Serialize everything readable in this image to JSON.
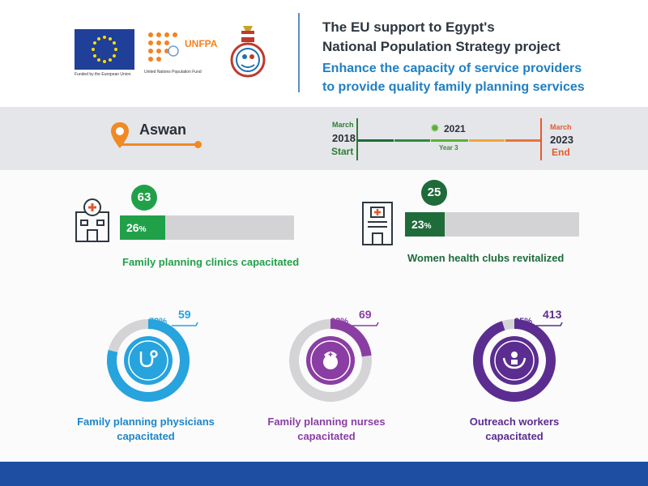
{
  "header": {
    "eu_caption": "Funded by the European Union",
    "unfpa_logo_text": "UNFPA",
    "unfpa_caption": "United Nations Population Fund",
    "title_line1": "The EU support to Egypt's",
    "title_line2": "National Population Strategy project",
    "subtitle_line1": "Enhance the capacity of service providers",
    "subtitle_line2": "to provide quality family planning services"
  },
  "location": {
    "city": "Aswan"
  },
  "timeline": {
    "start_month": "March",
    "start_year": "2018",
    "start_label": "Start",
    "current_year": "2021",
    "current_label": "Year 3",
    "end_month": "March",
    "end_year": "2023",
    "end_label": "End",
    "colors": {
      "start": "#2e7d32",
      "current": "#5cb034",
      "end": "#e65a2b"
    }
  },
  "metrics": [
    {
      "value": "63",
      "percent": "26",
      "percent_symbol": "%",
      "label": "Family planning clinics capacitated",
      "progress": 0.26,
      "color": "#21a04a",
      "icon": "clinic-building-icon"
    },
    {
      "value": "25",
      "percent": "23",
      "percent_symbol": "%",
      "label": "Women health clubs revitalized",
      "progress": 0.23,
      "color": "#1f6b3a",
      "icon": "health-club-building-icon"
    }
  ],
  "donuts": [
    {
      "value": "59",
      "percent": "79%",
      "label_line1": "Family planning physicians",
      "label_line2": "capacitated",
      "progress": 0.79,
      "color": "#27a3dd",
      "icon": "stethoscope-icon"
    },
    {
      "value": "69",
      "percent": "23%",
      "label_line1": "Family planning nurses",
      "label_line2": "capacitated",
      "progress": 0.23,
      "color": "#8a3ea3",
      "icon": "nurse-cap-icon"
    },
    {
      "value": "413",
      "percent": "95%",
      "label_line1": "Outreach workers",
      "label_line2": "capacitated",
      "progress": 0.95,
      "color": "#5b2d90",
      "icon": "caring-hands-icon"
    }
  ]
}
